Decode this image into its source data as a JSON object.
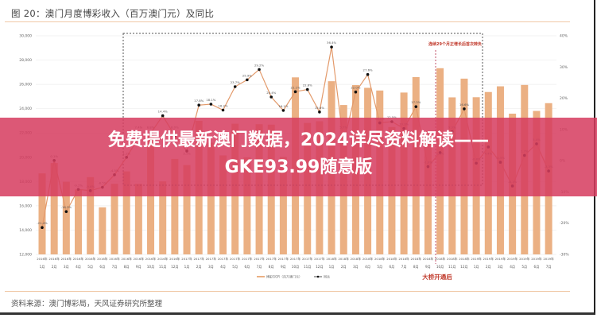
{
  "header": {
    "title": "图 20：澳门月度博彩收入（百万澳门元）及同比"
  },
  "footer": {
    "source": "资料来源：澳门博彩局，天风证券研究所整理"
  },
  "overlay": {
    "line1": "免费提供最新澳门数据，2024详尽资料解读——",
    "line2": "GKE93.99随意版",
    "color": "#d63c5f"
  },
  "chart_data": {
    "type": "bar+line",
    "categories": [
      "2016年1月",
      "2016年2月",
      "2016年3月",
      "2016年4月",
      "2016年5月",
      "2016年6月",
      "2016年7月",
      "2016年8月",
      "2016年9月",
      "2016年10月",
      "2016年11月",
      "2016年12月",
      "2017年1月",
      "2017年2月",
      "2017年3月",
      "2017年4月",
      "2017年5月",
      "2017年6月",
      "2017年7月",
      "2017年8月",
      "2017年9月",
      "2017年10月",
      "2017年11月",
      "2017年12月",
      "2018年1月",
      "2018年2月",
      "2018年3月",
      "2018年4月",
      "2018年5月",
      "2018年6月",
      "2018年7月",
      "2018年8月",
      "2018年9月",
      "2018年10月",
      "2018年11月",
      "2018年12月",
      "2019年1月",
      "2019年2月",
      "2019年3月",
      "2019年4月",
      "2019年5月",
      "2019年6月",
      "2019年7月"
    ],
    "series": [
      {
        "name": "博彩GGR（百万澳门元）",
        "type": "bar",
        "axis": "left",
        "color": "#ebb083",
        "values": [
          18674,
          19521,
          17981,
          17342,
          18362,
          15877,
          17814,
          18836,
          17802,
          21842,
          18009,
          19862,
          19355,
          23000,
          21195,
          20150,
          22760,
          19992,
          22720,
          22687,
          20018,
          26577,
          22822,
          22965,
          26260,
          24300,
          25942,
          25716,
          25493,
          22490,
          25327,
          26600,
          22116,
          27330,
          24930,
          26471,
          24942,
          25370,
          25840,
          23588,
          25952,
          23812,
          24453
        ]
      },
      {
        "name": "同比",
        "type": "line",
        "axis": "right",
        "color": "#e39a6b",
        "marker_color": "#111111",
        "values": [
          -21.4,
          0.1,
          -16.3,
          -9.2,
          -9.6,
          -8.5,
          -4.5,
          1.1,
          7.4,
          8.8,
          14.4,
          8.0,
          3.1,
          17.8,
          18.1,
          16.2,
          23.7,
          25.9,
          29.2,
          20.4,
          16.1,
          22.1,
          22.8,
          15.6,
          36.4,
          5.7,
          22.0,
          27.6,
          12.1,
          12.5,
          10.3,
          17.3,
          -1.9,
          2.6,
          9.3,
          16.6,
          -0.8,
          4.4,
          -0.5,
          -8.1,
          1.7,
          5.4,
          -3.3
        ]
      }
    ],
    "left_axis": {
      "ylim": [
        12000,
        30000
      ],
      "ticks": [
        "12,000",
        "14,000",
        "16,000",
        "18,000",
        "20,000",
        "22,000",
        "24,000",
        "26,000",
        "28,000",
        "30,000"
      ]
    },
    "right_axis": {
      "ylim": [
        -30,
        40
      ],
      "ticks": [
        "-30%",
        "-20%",
        "-10%",
        "0%",
        "10%",
        "20%",
        "30%",
        "40%"
      ]
    },
    "grid": true,
    "legend": "bottom-right",
    "annotations": {
      "top_note": "连续29个月正增长后首次转负",
      "bridge_note": "大桥开通后"
    }
  }
}
